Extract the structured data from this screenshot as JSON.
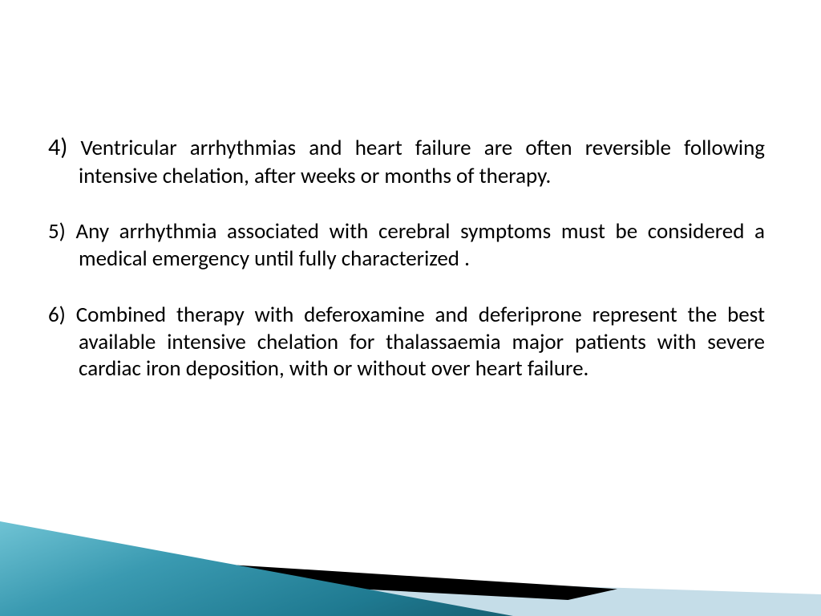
{
  "slide": {
    "background_color": "#ffffff",
    "text_color": "#000000",
    "font_family": "Calibri",
    "number_fontsize_pt": 22,
    "body_fontsize_pt": 20,
    "line_height": 1.25,
    "text_align": "justify",
    "items": [
      {
        "number": "4)",
        "text": " Ventricular arrhythmias and heart failure are often reversible following intensive chelation, after weeks or months of therapy."
      },
      {
        "number": "5)",
        "text": " Any arrhythmia associated with cerebral symptoms must be considered a medical emergency until fully characterized ."
      },
      {
        "number": "6)",
        "text": " Combined therapy with deferoxamine and deferiprone represent the best available intensive chelation for thalassaemia major patients with severe cardiac iron deposition, with or without over heart failure."
      }
    ]
  },
  "decoration": {
    "teal_gradient": [
      "#6fc3d4",
      "#3a9ab1",
      "#1f7a91",
      "#165f72"
    ],
    "light_blue": "#c5dde8",
    "black": "#000000"
  }
}
